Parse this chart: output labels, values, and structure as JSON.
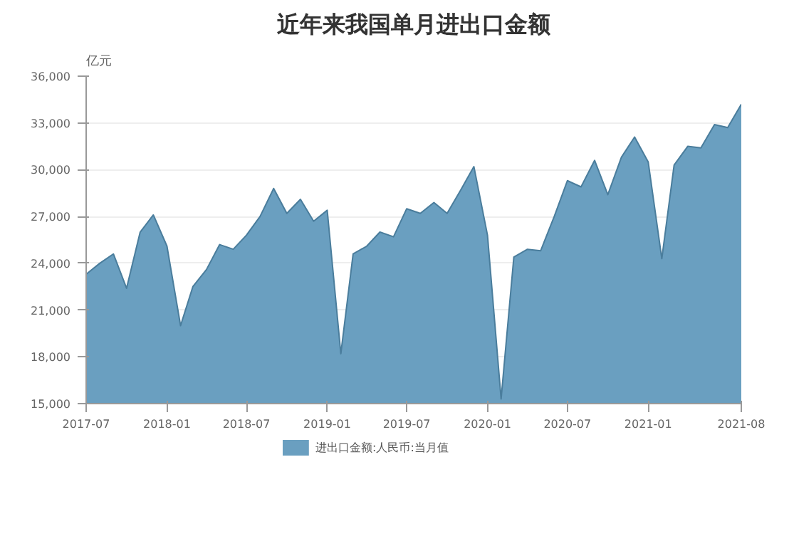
{
  "chart_data": {
    "type": "area",
    "title": "近年来我国单月进出口金额",
    "ylabel": "亿元",
    "x": [
      "2017-07",
      "2017-08",
      "2017-09",
      "2017-10",
      "2017-11",
      "2017-12",
      "2018-01",
      "2018-02",
      "2018-03",
      "2018-04",
      "2018-05",
      "2018-06",
      "2018-07",
      "2018-08",
      "2018-09",
      "2018-10",
      "2018-11",
      "2018-12",
      "2019-01",
      "2019-02",
      "2019-03",
      "2019-04",
      "2019-05",
      "2019-06",
      "2019-07",
      "2019-08",
      "2019-09",
      "2019-10",
      "2019-11",
      "2019-12",
      "2020-01",
      "2020-02",
      "2020-03",
      "2020-04",
      "2020-05",
      "2020-06",
      "2020-07",
      "2020-08",
      "2020-09",
      "2020-10",
      "2020-11",
      "2020-12",
      "2021-01",
      "2021-02",
      "2021-03",
      "2021-04",
      "2021-05",
      "2021-06",
      "2021-07",
      "2021-08"
    ],
    "series": [
      {
        "name": "进出口金额:人民币:当月值",
        "color": "#6a9fc0",
        "values": [
          23300,
          24000,
          24600,
          22400,
          26000,
          27100,
          25100,
          20000,
          22500,
          23600,
          25200,
          24900,
          25800,
          27000,
          28800,
          27200,
          28100,
          26700,
          27400,
          18200,
          24600,
          25100,
          26000,
          25700,
          27500,
          27200,
          27900,
          27200,
          28700,
          30200,
          25800,
          15300,
          24400,
          24900,
          24800,
          27000,
          29300,
          28900,
          30600,
          28400,
          30800,
          32100,
          30500,
          24300,
          30300,
          31500,
          31400,
          32900,
          32700,
          34200
        ]
      }
    ],
    "xlim": [
      "2017-07",
      "2021-08"
    ],
    "xticks": [
      "2017-07",
      "2018-01",
      "2018-07",
      "2019-01",
      "2019-07",
      "2020-01",
      "2020-07",
      "2021-01",
      "2021-08"
    ],
    "ylim": [
      15000,
      36000
    ],
    "yticks": [
      {
        "value": 15000,
        "label": "15,000"
      },
      {
        "value": 18000,
        "label": "18,000"
      },
      {
        "value": 21000,
        "label": "21,000"
      },
      {
        "value": 24000,
        "label": "24,000"
      },
      {
        "value": 27000,
        "label": "27,000"
      },
      {
        "value": 30000,
        "label": "30,000"
      },
      {
        "value": 33000,
        "label": "33,000"
      },
      {
        "value": 36000,
        "label": "36,000"
      }
    ],
    "grid": "y",
    "legend": "bottom"
  }
}
